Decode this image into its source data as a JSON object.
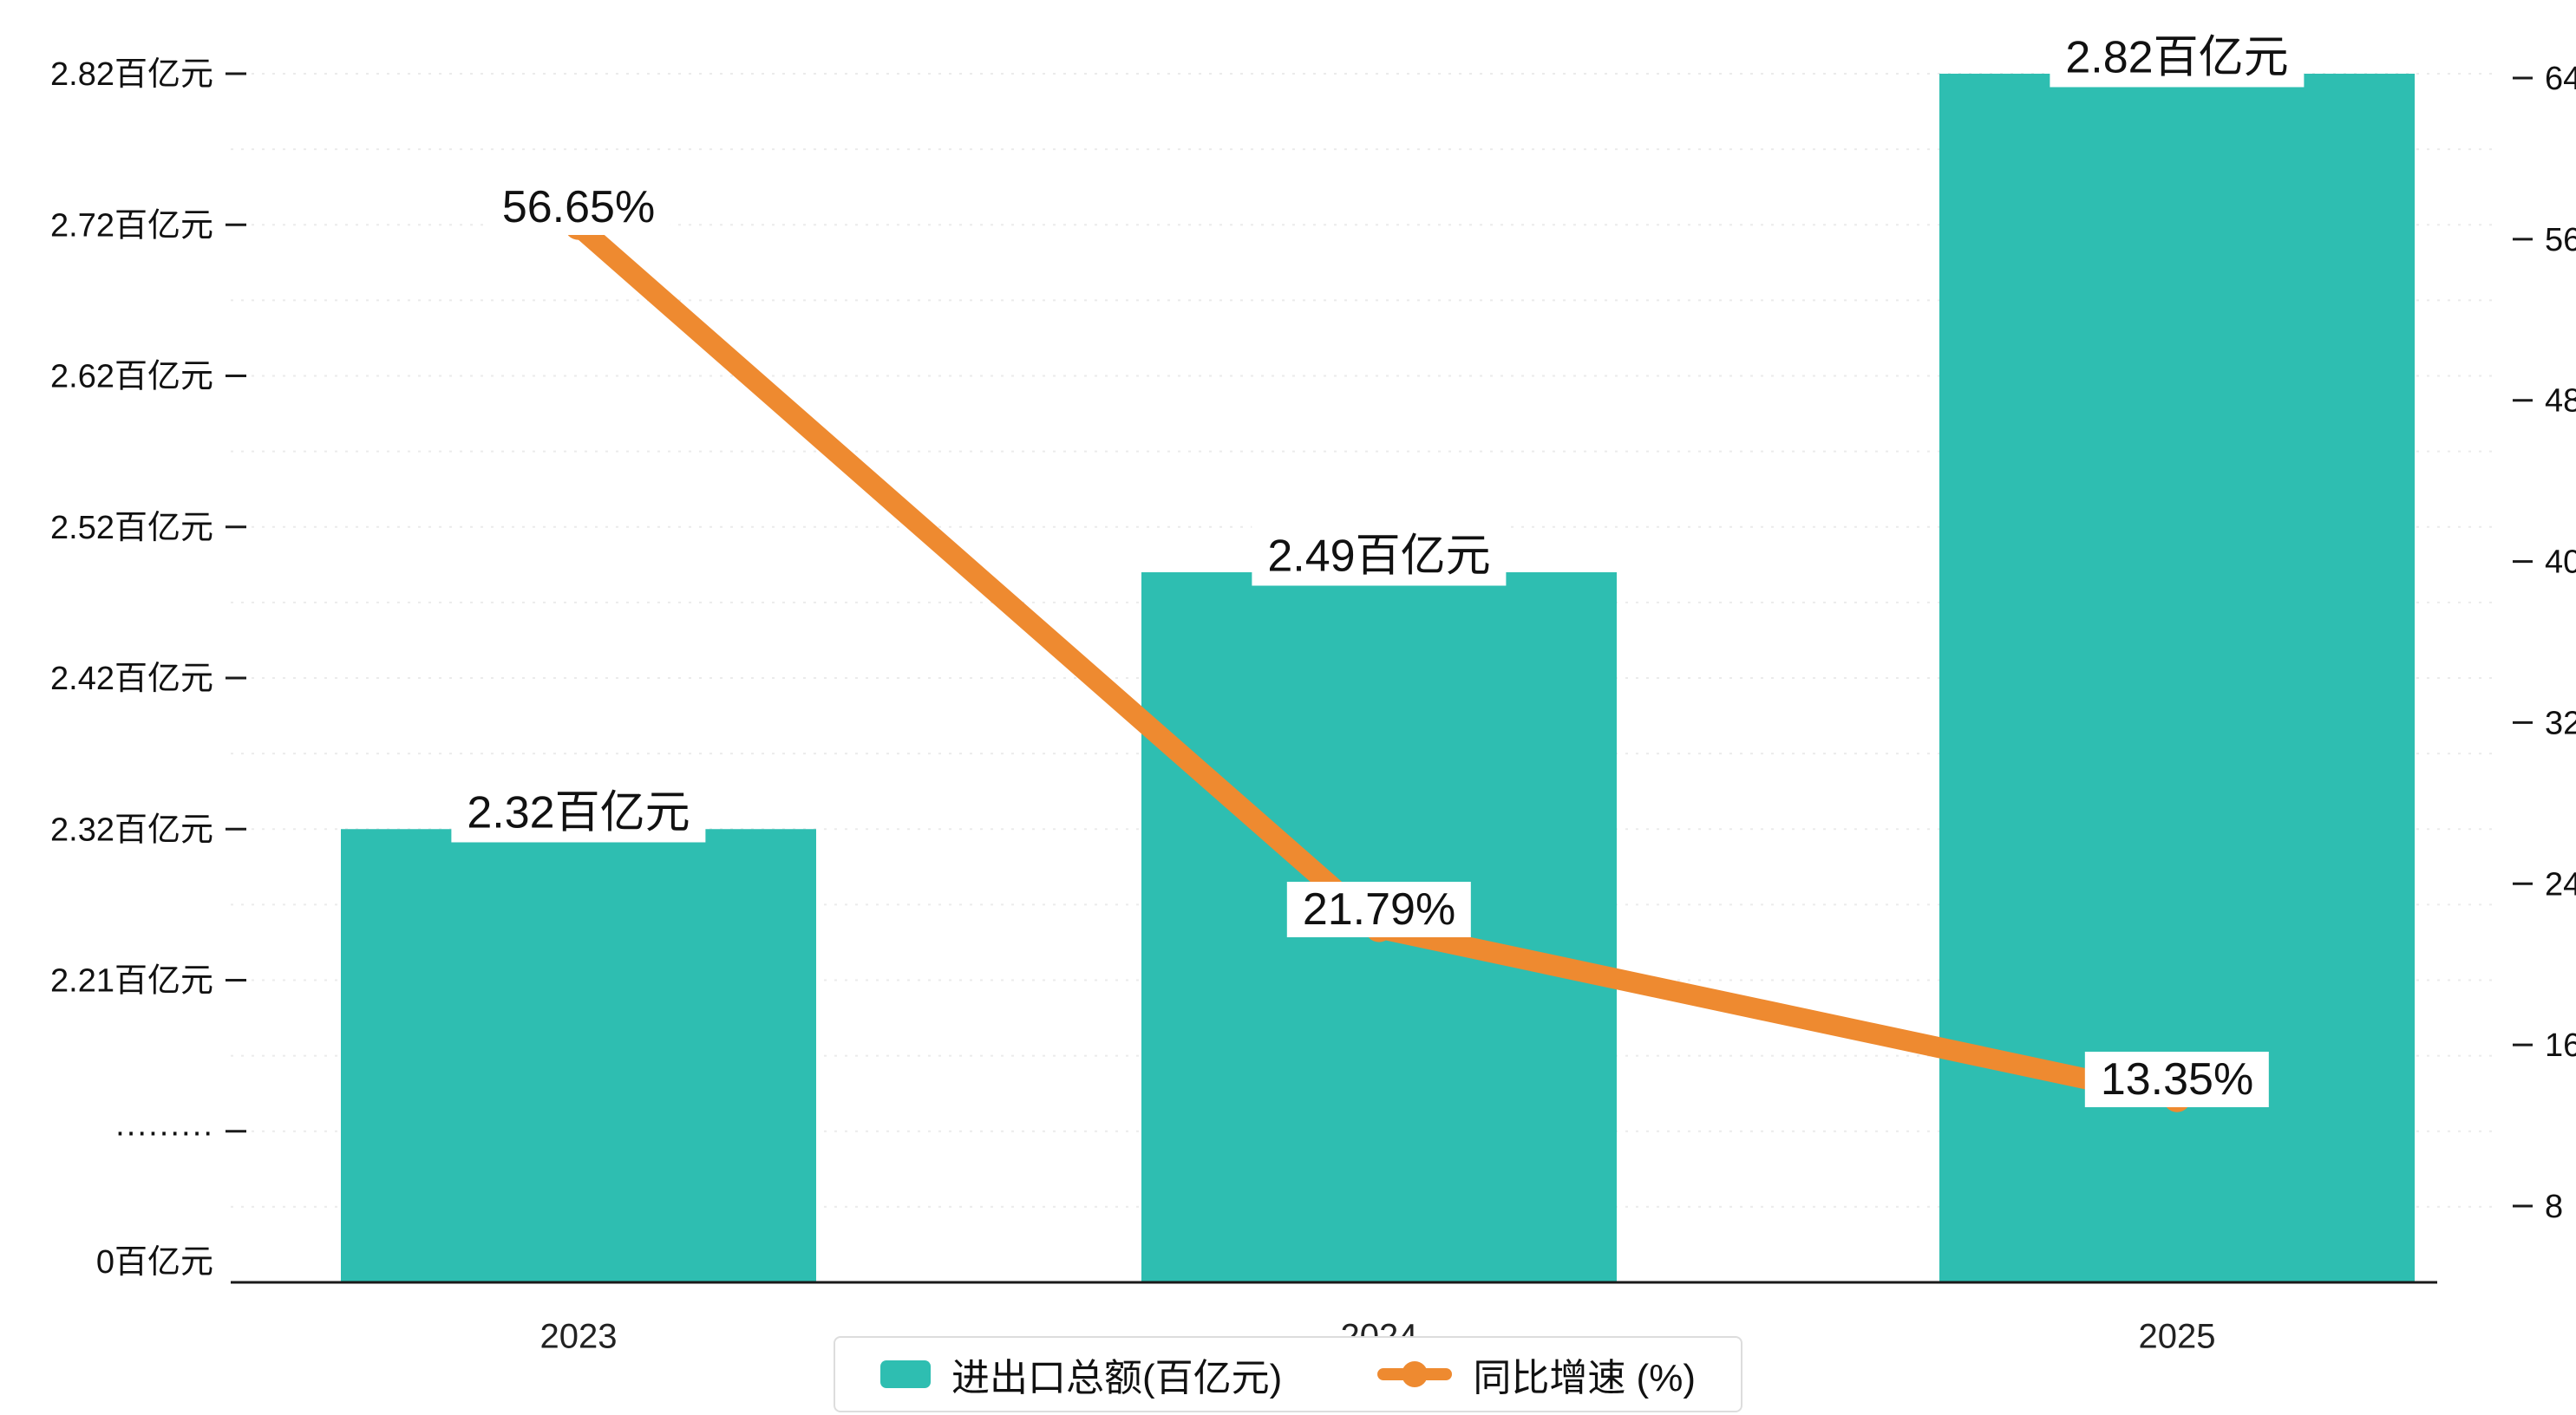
{
  "chart_data": {
    "type": "combo-bar-line",
    "categories": [
      "2023",
      "2024",
      "2025"
    ],
    "series": [
      {
        "name": "进出口总额(百亿元)",
        "type": "bar",
        "axis": "left",
        "values": [
          2.32,
          2.49,
          2.82
        ],
        "labels": [
          "2.32百亿元",
          "2.49百亿元",
          "2.82百亿元"
        ],
        "color": "#2ebeb1"
      },
      {
        "name": "同比增速 (%)",
        "type": "line",
        "axis": "right",
        "values": [
          56.65,
          21.79,
          13.35
        ],
        "labels": [
          "56.65%",
          "21.79%",
          "13.35%"
        ],
        "color": "#ee8a30"
      }
    ],
    "left_axis": {
      "tick_labels": [
        "2.82百亿元",
        "2.72百亿元",
        "2.62百亿元",
        "2.52百亿元",
        "2.42百亿元",
        "2.32百亿元",
        "2.21百亿元",
        "·········",
        "0百亿元"
      ],
      "tick_values": [
        2.82,
        2.72,
        2.62,
        2.52,
        2.42,
        2.32,
        2.21,
        null,
        0
      ],
      "break": true
    },
    "right_axis": {
      "tick_labels": [
        "64",
        "56",
        "48",
        "40",
        "32",
        "24",
        "16",
        "8"
      ],
      "range": [
        8,
        64
      ]
    },
    "grid": "dotted-horizontal",
    "legend_position": "bottom-center",
    "colors": {
      "bar": "#2ebeb1",
      "line": "#ee8a30",
      "axis": "#1a1a1a",
      "grid": "#ebebeb"
    }
  },
  "legend": {
    "bar_label": "进出口总额(百亿元)",
    "line_label": "同比增速 (%)"
  }
}
